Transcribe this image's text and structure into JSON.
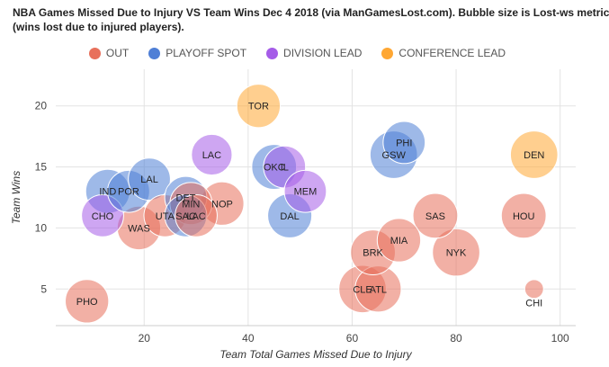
{
  "chart_data": {
    "type": "bubble",
    "title_lines": [
      "NBA Games Missed Due to Injury VS Team Wins Dec 4 2018 (via ManGamesLost.com). Bubble size is Lost-ws metric",
      "(wins lost due to injured players)."
    ],
    "xlabel": "Team Total Games Missed Due to Injury",
    "ylabel": "Team Wins",
    "xlim": [
      3,
      103
    ],
    "ylim": [
      2,
      23
    ],
    "xticks": [
      20,
      40,
      60,
      80,
      100
    ],
    "yticks": [
      5,
      10,
      15,
      20
    ],
    "grid": true,
    "legend_position": "top",
    "legend": [
      {
        "name": "OUT",
        "color": "#e8705b"
      },
      {
        "name": "PLAYOFF SPOT",
        "color": "#4f7fd6"
      },
      {
        "name": "DIVISION LEAD",
        "color": "#a55ce8"
      },
      {
        "name": "CONFERENCE LEAD",
        "color": "#ffa733"
      }
    ],
    "points": [
      {
        "team": "PHO",
        "x": 9,
        "y": 4,
        "size": 3.2,
        "group": "OUT"
      },
      {
        "team": "CHO",
        "x": 12,
        "y": 11,
        "size": 3.0,
        "group": "DIVISION LEAD"
      },
      {
        "team": "IND",
        "x": 13,
        "y": 13,
        "size": 3.3,
        "group": "PLAYOFF SPOT"
      },
      {
        "team": "POR",
        "x": 17,
        "y": 13,
        "size": 3.0,
        "group": "PLAYOFF SPOT"
      },
      {
        "team": "LAL",
        "x": 21,
        "y": 14,
        "size": 3.0,
        "group": "PLAYOFF SPOT"
      },
      {
        "team": "WAS",
        "x": 19,
        "y": 10,
        "size": 3.2,
        "group": "OUT"
      },
      {
        "team": "UTA",
        "x": 24,
        "y": 11,
        "size": 3.0,
        "group": "OUT"
      },
      {
        "team": "DET",
        "x": 28,
        "y": 12.5,
        "size": 3.0,
        "group": "PLAYOFF SPOT"
      },
      {
        "team": "MIN",
        "x": 29,
        "y": 12,
        "size": 3.0,
        "group": "OUT"
      },
      {
        "team": "SAC",
        "x": 28,
        "y": 11,
        "size": 3.0,
        "group": "PLAYOFF SPOT"
      },
      {
        "team": "LAC",
        "x": 30,
        "y": 11,
        "size": 3.0,
        "group": "OUT"
      },
      {
        "team": "NOP",
        "x": 35,
        "y": 12,
        "size": 3.2,
        "group": "OUT"
      },
      {
        "team": "LAC",
        "x": 33,
        "y": 16,
        "size": 2.8,
        "group": "DIVISION LEAD"
      },
      {
        "team": "TOR",
        "x": 42,
        "y": 20,
        "size": 3.2,
        "group": "CONFERENCE LEAD"
      },
      {
        "team": "OKC",
        "x": 45,
        "y": 15,
        "size": 3.4,
        "group": "PLAYOFF SPOT"
      },
      {
        "team": "IL",
        "x": 47,
        "y": 15,
        "size": 3.0,
        "group": "DIVISION LEAD"
      },
      {
        "team": "MEM",
        "x": 51,
        "y": 13,
        "size": 3.0,
        "group": "DIVISION LEAD"
      },
      {
        "team": "DAL",
        "x": 48,
        "y": 11,
        "size": 3.3,
        "group": "PLAYOFF SPOT"
      },
      {
        "team": "PHI",
        "x": 70,
        "y": 17,
        "size": 3.0,
        "group": "PLAYOFF SPOT"
      },
      {
        "team": "GSW",
        "x": 68,
        "y": 16,
        "size": 3.8,
        "group": "PLAYOFF SPOT"
      },
      {
        "team": "DEN",
        "x": 95,
        "y": 16,
        "size": 3.8,
        "group": "CONFERENCE LEAD"
      },
      {
        "team": "SAS",
        "x": 76,
        "y": 11,
        "size": 3.4,
        "group": "OUT"
      },
      {
        "team": "HOU",
        "x": 93,
        "y": 11,
        "size": 3.4,
        "group": "OUT"
      },
      {
        "team": "MIA",
        "x": 69,
        "y": 9,
        "size": 3.2,
        "group": "OUT"
      },
      {
        "team": "BRK",
        "x": 64,
        "y": 8,
        "size": 3.4,
        "group": "OUT"
      },
      {
        "team": "NYK",
        "x": 80,
        "y": 8,
        "size": 3.8,
        "group": "OUT"
      },
      {
        "team": "CLE",
        "x": 62,
        "y": 5,
        "size": 3.8,
        "group": "OUT"
      },
      {
        "team": "ATL",
        "x": 65,
        "y": 5,
        "size": 3.6,
        "group": "OUT"
      },
      {
        "team": "CHI",
        "x": 95,
        "y": 5,
        "size": 0.6,
        "group": "OUT"
      }
    ]
  }
}
